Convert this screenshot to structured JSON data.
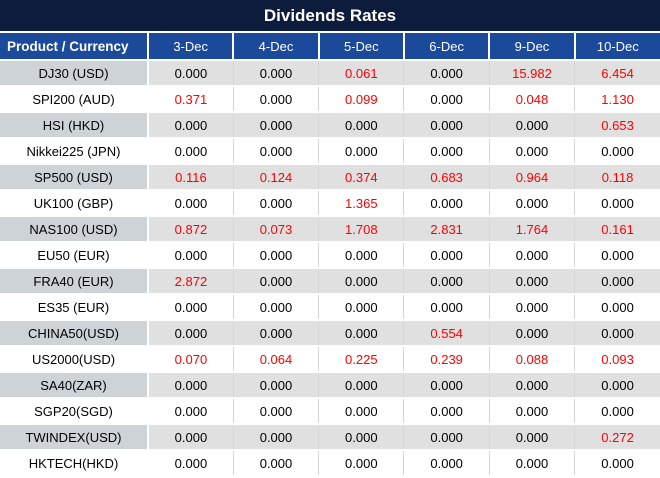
{
  "chart_data": {
    "type": "table",
    "title": "Dividends Rates",
    "columns": [
      "Product / Currency",
      "3-Dec",
      "4-Dec",
      "5-Dec",
      "6-Dec",
      "9-Dec",
      "10-Dec"
    ],
    "rows": [
      {
        "product": "DJ30 (USD)",
        "values": [
          "0.000",
          "0.000",
          "0.061",
          "0.000",
          "15.982",
          "6.454"
        ],
        "red": [
          false,
          false,
          true,
          false,
          true,
          true
        ]
      },
      {
        "product": "SPI200 (AUD)",
        "values": [
          "0.371",
          "0.000",
          "0.099",
          "0.000",
          "0.048",
          "1.130"
        ],
        "red": [
          true,
          false,
          true,
          false,
          true,
          true
        ]
      },
      {
        "product": "HSI (HKD)",
        "values": [
          "0.000",
          "0.000",
          "0.000",
          "0.000",
          "0.000",
          "0.653"
        ],
        "red": [
          false,
          false,
          false,
          false,
          false,
          true
        ]
      },
      {
        "product": "Nikkei225 (JPN)",
        "values": [
          "0.000",
          "0.000",
          "0.000",
          "0.000",
          "0.000",
          "0.000"
        ],
        "red": [
          false,
          false,
          false,
          false,
          false,
          false
        ]
      },
      {
        "product": "SP500 (USD)",
        "values": [
          "0.116",
          "0.124",
          "0.374",
          "0.683",
          "0.964",
          "0.118"
        ],
        "red": [
          true,
          true,
          true,
          true,
          true,
          true
        ]
      },
      {
        "product": "UK100 (GBP)",
        "values": [
          "0.000",
          "0.000",
          "1.365",
          "0.000",
          "0.000",
          "0.000"
        ],
        "red": [
          false,
          false,
          true,
          false,
          false,
          false
        ]
      },
      {
        "product": "NAS100 (USD)",
        "values": [
          "0.872",
          "0.073",
          "1.708",
          "2.831",
          "1.764",
          "0.161"
        ],
        "red": [
          true,
          true,
          true,
          true,
          true,
          true
        ]
      },
      {
        "product": "EU50 (EUR)",
        "values": [
          "0.000",
          "0.000",
          "0.000",
          "0.000",
          "0.000",
          "0.000"
        ],
        "red": [
          false,
          false,
          false,
          false,
          false,
          false
        ]
      },
      {
        "product": "FRA40 (EUR)",
        "values": [
          "2.872",
          "0.000",
          "0.000",
          "0.000",
          "0.000",
          "0.000"
        ],
        "red": [
          true,
          false,
          false,
          false,
          false,
          false
        ]
      },
      {
        "product": "ES35 (EUR)",
        "values": [
          "0.000",
          "0.000",
          "0.000",
          "0.000",
          "0.000",
          "0.000"
        ],
        "red": [
          false,
          false,
          false,
          false,
          false,
          false
        ]
      },
      {
        "product": "CHINA50(USD)",
        "values": [
          "0.000",
          "0.000",
          "0.000",
          "0.554",
          "0.000",
          "0.000"
        ],
        "red": [
          false,
          false,
          false,
          true,
          false,
          false
        ]
      },
      {
        "product": "US2000(USD)",
        "values": [
          "0.070",
          "0.064",
          "0.225",
          "0.239",
          "0.088",
          "0.093"
        ],
        "red": [
          true,
          true,
          true,
          true,
          true,
          true
        ]
      },
      {
        "product": "SA40(ZAR)",
        "values": [
          "0.000",
          "0.000",
          "0.000",
          "0.000",
          "0.000",
          "0.000"
        ],
        "red": [
          false,
          false,
          false,
          false,
          false,
          false
        ]
      },
      {
        "product": "SGP20(SGD)",
        "values": [
          "0.000",
          "0.000",
          "0.000",
          "0.000",
          "0.000",
          "0.000"
        ],
        "red": [
          false,
          false,
          false,
          false,
          false,
          false
        ]
      },
      {
        "product": "TWINDEX(USD)",
        "values": [
          "0.000",
          "0.000",
          "0.000",
          "0.000",
          "0.000",
          "0.272"
        ],
        "red": [
          false,
          false,
          false,
          false,
          false,
          true
        ]
      },
      {
        "product": "HKTECH(HKD)",
        "values": [
          "0.000",
          "0.000",
          "0.000",
          "0.000",
          "0.000",
          "0.000"
        ],
        "red": [
          false,
          false,
          false,
          false,
          false,
          false
        ]
      }
    ],
    "colors": {
      "title_bg": "#0d1c3c",
      "header_bg": "#1b4a9a",
      "row_alt_bg": "#e0e0e0",
      "product_alt_bg": "#ced3d8",
      "value_red": "#fe0000",
      "text": "#000000",
      "grid_line": "#d6d6d6",
      "header_text": "#ffffff"
    }
  }
}
